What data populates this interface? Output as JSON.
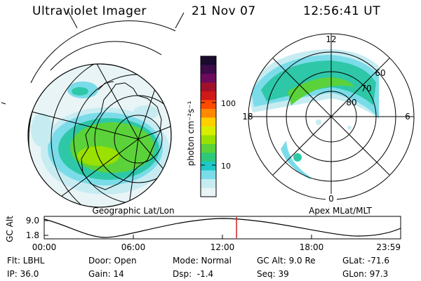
{
  "header": {
    "title": "Ultraviolet Imager",
    "date": "21 Nov 07",
    "time": "12:56:41 UT"
  },
  "geo_panel": {
    "label": "Geographic Lat/Lon"
  },
  "mag_panel": {
    "label": "Apex MLat/MLT",
    "mlt_labels": {
      "top": "12",
      "left": "18",
      "right": "6",
      "bottom": "0"
    },
    "lat_labels": [
      "60",
      "70",
      "80"
    ]
  },
  "colorbar": {
    "label": "photon cm⁻²s⁻¹",
    "ticks": [
      "100",
      "10"
    ],
    "colors": [
      "#1a0a2e",
      "#3d0a4a",
      "#6e0a5e",
      "#a0102a",
      "#d01818",
      "#ff4a00",
      "#ff8a00",
      "#ffd000",
      "#d8ee00",
      "#9ae000",
      "#5cd23a",
      "#2ec87a",
      "#1ec8c8",
      "#7adce8",
      "#c6ecf2",
      "#e8f4f6"
    ]
  },
  "altitude_plot": {
    "ylabel": "GC Alt",
    "y_ticks": [
      "9.0",
      "1.8"
    ],
    "x_ticks": [
      "00:00",
      "06:00",
      "12:00",
      "18:00",
      "23:59"
    ],
    "current_time_hours": 12.95,
    "marker_color": "#d02020"
  },
  "info": {
    "filter": "Flt: LBHL",
    "ip": "IP: 36.0",
    "door": "Door: Open",
    "gain": "Gain: 14",
    "mode": "Mode: Normal",
    "dsp": "Dsp:  -1.4",
    "gc_alt": "GC Alt: 9.0 Re",
    "seq": "Seq: 39",
    "glat": "GLat: -71.6",
    "glon": "GLon: 97.3"
  }
}
